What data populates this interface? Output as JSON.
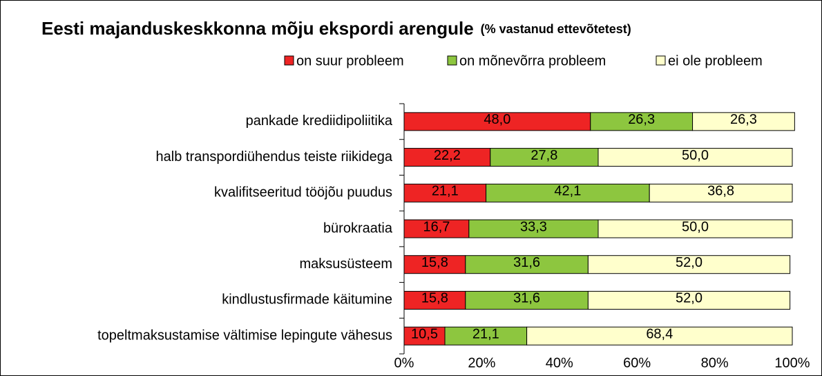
{
  "chart_data": {
    "type": "stacked-bar-horizontal",
    "title": "Eesti majanduskeskkonna mõju ekspordi arengule",
    "subtitle": "(% vastanud ettevõtetest)",
    "categories": [
      "pankade krediidipoliitika",
      "halb transpordiühendus teiste riikidega",
      "kvalifitseeritud tööjõu puudus",
      "bürokraatia",
      "maksusüsteem",
      "kindlustusfirmade käitumine",
      "topeltmaksustamise vältimise lepingute vähesus"
    ],
    "series": [
      {
        "name": "on suur probleem",
        "color": "#ee2424",
        "values": [
          48.0,
          22.2,
          21.1,
          16.7,
          15.8,
          15.8,
          10.5
        ],
        "value_labels": [
          "48,0",
          "22,2",
          "21,1",
          "16,7",
          "15,8",
          "15,8",
          "10,5"
        ]
      },
      {
        "name": "on mõnevõrra probleem",
        "color": "#8dc63f",
        "values": [
          26.3,
          27.8,
          42.1,
          33.3,
          31.6,
          31.6,
          21.1
        ],
        "value_labels": [
          "26,3",
          "27,8",
          "42,1",
          "33,3",
          "31,6",
          "31,6",
          "21,1"
        ]
      },
      {
        "name": "ei ole probleem",
        "color": "#ffffcc",
        "values": [
          26.3,
          50.0,
          36.8,
          50.0,
          52.0,
          52.0,
          68.4
        ],
        "value_labels": [
          "26,3",
          "50,0",
          "36,8",
          "50,0",
          "52,0",
          "52,0",
          "68,4"
        ]
      }
    ],
    "xlim": [
      0,
      100
    ],
    "xticks": [
      {
        "value": 0,
        "label": "0%"
      },
      {
        "value": 20,
        "label": "20%"
      },
      {
        "value": 40,
        "label": "40%"
      },
      {
        "value": 60,
        "label": "60%"
      },
      {
        "value": 80,
        "label": "80%"
      },
      {
        "value": 100,
        "label": "100%"
      }
    ],
    "legend": "top-right"
  }
}
